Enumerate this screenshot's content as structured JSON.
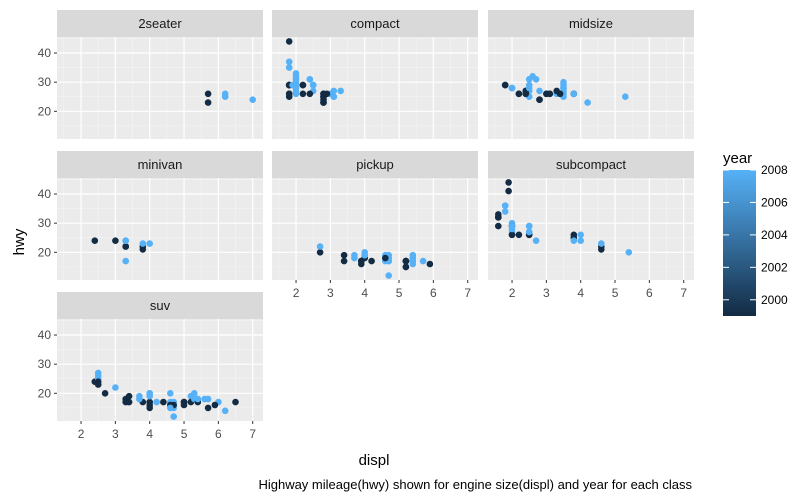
{
  "chart_data": {
    "type": "scatter",
    "xlabel": "displ",
    "ylabel": "hwy",
    "caption": "Highway mileage(hwy) shown for engine size(displ) and year for each class",
    "xlim": [
      1.3,
      7.3
    ],
    "ylim": [
      10.5,
      45.5
    ],
    "x_ticks": [
      2,
      3,
      4,
      5,
      6,
      7
    ],
    "y_ticks": [
      20,
      30,
      40
    ],
    "grid": true,
    "legend": {
      "title": "year",
      "position": "right",
      "range": [
        1999,
        2008
      ],
      "ticks": [
        2000,
        2002,
        2004,
        2006,
        2008
      ],
      "color_low": "#132B43",
      "color_high": "#56B1F7"
    },
    "panels": [
      {
        "label": "2seater",
        "points": [
          [
            5.7,
            26,
            1999
          ],
          [
            5.7,
            23,
            1999
          ],
          [
            6.2,
            26,
            2008
          ],
          [
            6.2,
            25,
            2008
          ],
          [
            7.0,
            24,
            2008
          ]
        ]
      },
      {
        "label": "compact",
        "points": [
          [
            1.8,
            29,
            1999
          ],
          [
            1.8,
            29,
            1999
          ],
          [
            2.0,
            31,
            2008
          ],
          [
            2.0,
            30,
            2008
          ],
          [
            2.8,
            26,
            1999
          ],
          [
            2.8,
            26,
            1999
          ],
          [
            3.1,
            27,
            2008
          ],
          [
            1.8,
            26,
            1999
          ],
          [
            1.8,
            25,
            1999
          ],
          [
            2.0,
            28,
            2008
          ],
          [
            2.0,
            27,
            2008
          ],
          [
            2.8,
            25,
            1999
          ],
          [
            2.8,
            25,
            1999
          ],
          [
            3.1,
            25,
            2008
          ],
          [
            3.1,
            25,
            2008
          ],
          [
            2.2,
            26,
            1999
          ],
          [
            2.2,
            29,
            1999
          ],
          [
            2.4,
            31,
            2008
          ],
          [
            2.4,
            31,
            2008
          ],
          [
            3.0,
            26,
            2008
          ],
          [
            3.0,
            26,
            2008
          ],
          [
            3.3,
            27,
            2008
          ],
          [
            1.8,
            44,
            1999
          ],
          [
            1.8,
            29,
            1999
          ],
          [
            1.8,
            26,
            1999
          ],
          [
            1.8,
            29,
            1999
          ],
          [
            1.9,
            29,
            2008
          ],
          [
            2.0,
            29,
            2008
          ],
          [
            2.0,
            28,
            2008
          ],
          [
            2.5,
            29,
            2008
          ],
          [
            2.8,
            23,
            1999
          ],
          [
            2.8,
            24,
            1999
          ],
          [
            2.8,
            23,
            1999
          ],
          [
            1.8,
            37,
            2008
          ],
          [
            1.8,
            35,
            2008
          ],
          [
            2.0,
            26,
            2008
          ],
          [
            2.2,
            29,
            1999
          ],
          [
            2.5,
            29,
            2008
          ],
          [
            2.0,
            33,
            2008
          ],
          [
            2.5,
            29,
            2008
          ],
          [
            2.0,
            32,
            2008
          ],
          [
            2.5,
            27,
            2008
          ],
          [
            2.0,
            31,
            2008
          ],
          [
            2.4,
            26,
            1999
          ],
          [
            2.9,
            26,
            1999
          ]
        ]
      },
      {
        "label": "midsize",
        "points": [
          [
            2.4,
            27,
            2008
          ],
          [
            2.5,
            29,
            2008
          ],
          [
            2.5,
            27,
            2008
          ],
          [
            3.3,
            26,
            2008
          ],
          [
            3.5,
            26,
            2008
          ],
          [
            3.5,
            28,
            2008
          ],
          [
            2.4,
            26,
            1999
          ],
          [
            2.5,
            25,
            2008
          ],
          [
            3.1,
            26,
            1999
          ],
          [
            1.8,
            29,
            1999
          ],
          [
            2.0,
            28,
            2008
          ],
          [
            2.4,
            27,
            1999
          ],
          [
            2.8,
            24,
            1999
          ],
          [
            2.8,
            24,
            1999
          ],
          [
            2.8,
            27,
            2008
          ],
          [
            3.5,
            25,
            2008
          ],
          [
            3.3,
            26,
            2008
          ],
          [
            3.5,
            27,
            2008
          ],
          [
            3.8,
            26,
            1999
          ],
          [
            3.8,
            26,
            1999
          ],
          [
            4.2,
            23,
            2008
          ],
          [
            2.4,
            27,
            1999
          ],
          [
            3.0,
            26,
            1999
          ],
          [
            3.3,
            27,
            1999
          ],
          [
            3.5,
            30,
            2008
          ],
          [
            1.8,
            29,
            1999
          ],
          [
            2.0,
            28,
            2008
          ],
          [
            2.0,
            28,
            2008
          ],
          [
            2.2,
            26,
            1999
          ],
          [
            2.5,
            31,
            2008
          ],
          [
            2.6,
            32,
            2008
          ],
          [
            2.7,
            31,
            2008
          ],
          [
            3.1,
            26,
            1999
          ],
          [
            3.5,
            29,
            2008
          ],
          [
            3.5,
            28,
            2008
          ],
          [
            3.8,
            26,
            2008
          ],
          [
            5.3,
            25,
            2008
          ],
          [
            2.2,
            26,
            1999
          ],
          [
            2.4,
            26,
            1999
          ],
          [
            2.5,
            28,
            2008
          ],
          [
            3.0,
            26,
            1999
          ],
          [
            3.4,
            26,
            1999
          ]
        ]
      },
      {
        "label": "minivan",
        "points": [
          [
            2.4,
            24,
            1999
          ],
          [
            3.0,
            24,
            1999
          ],
          [
            3.3,
            22,
            1999
          ],
          [
            3.3,
            22,
            1999
          ],
          [
            3.3,
            24,
            2008
          ],
          [
            3.3,
            24,
            2008
          ],
          [
            3.3,
            17,
            2008
          ],
          [
            3.8,
            22,
            1999
          ],
          [
            3.8,
            21,
            1999
          ],
          [
            3.8,
            23,
            2008
          ],
          [
            4.0,
            23,
            2008
          ]
        ]
      },
      {
        "label": "pickup",
        "points": [
          [
            2.7,
            20,
            1999
          ],
          [
            2.7,
            22,
            2008
          ],
          [
            3.4,
            17,
            1999
          ],
          [
            3.4,
            19,
            1999
          ],
          [
            3.7,
            18,
            2008
          ],
          [
            3.7,
            19,
            2008
          ],
          [
            3.9,
            17,
            1999
          ],
          [
            3.9,
            17,
            1999
          ],
          [
            4.0,
            20,
            2008
          ],
          [
            4.2,
            17,
            1999
          ],
          [
            4.6,
            17,
            2008
          ],
          [
            4.6,
            19,
            2008
          ],
          [
            4.7,
            17,
            2008
          ],
          [
            4.7,
            12,
            2008
          ],
          [
            4.7,
            19,
            2008
          ],
          [
            4.7,
            17,
            2008
          ],
          [
            5.2,
            17,
            1999
          ],
          [
            5.2,
            15,
            1999
          ],
          [
            5.2,
            17,
            1999
          ],
          [
            5.4,
            17,
            2008
          ],
          [
            5.4,
            19,
            2008
          ],
          [
            5.7,
            17,
            2008
          ],
          [
            5.9,
            16,
            1999
          ],
          [
            4.7,
            18,
            2008
          ],
          [
            5.2,
            17,
            1999
          ],
          [
            5.2,
            15,
            1999
          ],
          [
            5.4,
            16,
            2008
          ],
          [
            4.0,
            18,
            1999
          ],
          [
            4.0,
            19,
            2008
          ],
          [
            4.0,
            19,
            2008
          ],
          [
            4.6,
            18,
            1999
          ],
          [
            5.4,
            18,
            2008
          ],
          [
            3.9,
            16,
            1999
          ]
        ]
      },
      {
        "label": "subcompact",
        "points": [
          [
            3.8,
            26,
            1999
          ],
          [
            3.8,
            25,
            1999
          ],
          [
            4.0,
            26,
            2008
          ],
          [
            4.0,
            24,
            2008
          ],
          [
            4.6,
            21,
            1999
          ],
          [
            4.6,
            22,
            1999
          ],
          [
            4.6,
            23,
            2008
          ],
          [
            5.4,
            20,
            2008
          ],
          [
            1.6,
            33,
            1999
          ],
          [
            1.6,
            32,
            1999
          ],
          [
            1.6,
            32,
            1999
          ],
          [
            1.6,
            29,
            1999
          ],
          [
            1.6,
            32,
            1999
          ],
          [
            1.8,
            34,
            2008
          ],
          [
            1.8,
            36,
            2008
          ],
          [
            1.8,
            36,
            2008
          ],
          [
            2.0,
            29,
            2008
          ],
          [
            2.0,
            26,
            1999
          ],
          [
            2.0,
            27,
            2008
          ],
          [
            2.0,
            30,
            2008
          ],
          [
            2.5,
            26,
            1999
          ],
          [
            2.5,
            26,
            1999
          ],
          [
            2.5,
            27,
            2008
          ],
          [
            2.7,
            24,
            2008
          ],
          [
            1.9,
            44,
            1999
          ],
          [
            2.0,
            29,
            1999
          ],
          [
            2.0,
            26,
            1999
          ],
          [
            2.2,
            26,
            1999
          ],
          [
            2.5,
            29,
            2008
          ],
          [
            2.5,
            29,
            2008
          ],
          [
            1.9,
            41,
            1999
          ],
          [
            2.0,
            28,
            2008
          ],
          [
            2.0,
            29,
            2008
          ],
          [
            2.5,
            27,
            2008
          ],
          [
            3.8,
            24,
            2008
          ]
        ]
      },
      {
        "label": "suv",
        "points": [
          [
            2.5,
            26,
            2008
          ],
          [
            2.5,
            27,
            2008
          ],
          [
            2.4,
            24,
            1999
          ],
          [
            2.5,
            25,
            2008
          ],
          [
            2.7,
            20,
            1999
          ],
          [
            3.0,
            22,
            2008
          ],
          [
            3.3,
            17,
            1999
          ],
          [
            3.4,
            19,
            1999
          ],
          [
            3.7,
            19,
            2008
          ],
          [
            4.0,
            20,
            2008
          ],
          [
            4.0,
            17,
            1999
          ],
          [
            4.0,
            15,
            1999
          ],
          [
            4.2,
            17,
            2008
          ],
          [
            4.6,
            20,
            2008
          ],
          [
            4.6,
            17,
            2008
          ],
          [
            4.7,
            15,
            2008
          ],
          [
            4.7,
            12,
            2008
          ],
          [
            4.7,
            17,
            2008
          ],
          [
            5.2,
            19,
            2008
          ],
          [
            5.2,
            17,
            1999
          ],
          [
            5.3,
            20,
            2008
          ],
          [
            5.3,
            18,
            2008
          ],
          [
            5.4,
            18,
            2008
          ],
          [
            5.7,
            18,
            2008
          ],
          [
            6.0,
            17,
            2008
          ],
          [
            6.2,
            14,
            2008
          ],
          [
            6.5,
            17,
            1999
          ],
          [
            5.7,
            15,
            1999
          ],
          [
            5.0,
            17,
            1999
          ],
          [
            4.6,
            16,
            1999
          ],
          [
            3.3,
            18,
            1999
          ],
          [
            3.4,
            17,
            1999
          ],
          [
            3.8,
            17,
            1999
          ],
          [
            4.0,
            16,
            1999
          ],
          [
            4.4,
            17,
            1999
          ],
          [
            4.7,
            16,
            1999
          ],
          [
            5.4,
            17,
            1999
          ],
          [
            2.5,
            24,
            1999
          ],
          [
            3.7,
            18,
            2008
          ],
          [
            4.0,
            19,
            2008
          ],
          [
            4.6,
            15,
            2008
          ],
          [
            5.0,
            16,
            1999
          ],
          [
            5.6,
            18,
            2008
          ],
          [
            5.9,
            16,
            1999
          ],
          [
            4.0,
            20,
            2008
          ],
          [
            5.4,
            18,
            2008
          ],
          [
            2.5,
            23,
            1999
          ],
          [
            5.0,
            17,
            1999
          ]
        ]
      }
    ]
  }
}
